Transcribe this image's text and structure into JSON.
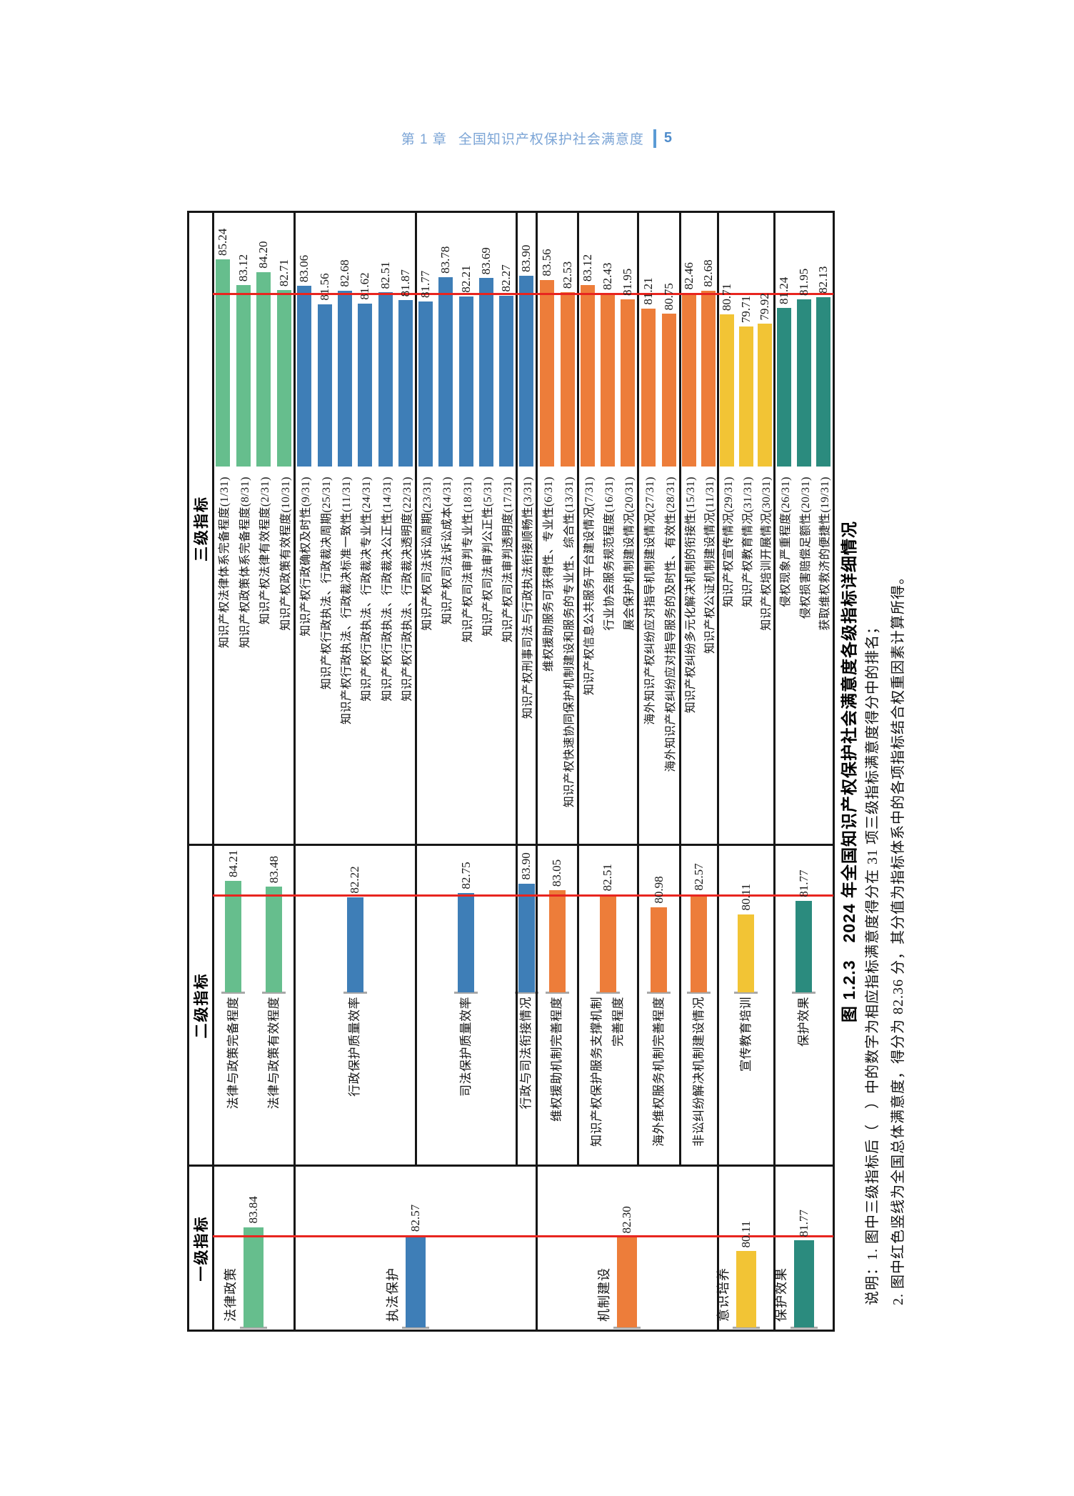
{
  "page_header": {
    "chapter": "第 1 章",
    "title": "全国知识产权保护社会满意度",
    "page_number": "5"
  },
  "figure": {
    "column_headers": [
      "一级指标",
      "二级指标",
      "三级指标"
    ],
    "caption": "图 1.2.3　2024 年全国知识产权保护社会满意度各级指标详细情况",
    "notes": [
      "说明：1. 图中三级指标后（　）中的数字为相应指标满意度得分在 31 项三级指标满意度得分中的排名；",
      "2. 图中红色竖线为全国总体满意度，得分为 82.36 分，其分值为指标体系中的各项指标结合权重因素计算所得。"
    ]
  },
  "chart_data": {
    "type": "bar",
    "orientation": "horizontal bars, whole figure rotated 90° counterclockwise on the page",
    "national_average": 82.36,
    "average_line_color": "#e8251f",
    "legend_position": "none",
    "grid": "table frame with black separators per indicator group",
    "groups": [
      {
        "color": "#66be8d",
        "level1": {
          "label": "法律政策",
          "value": 83.84
        },
        "rows": [
          {
            "level2": [
              {
                "label": "法律与政策完备程度",
                "value": 84.21
              },
              {
                "label": "法律与政策有效程度",
                "value": 83.48
              }
            ],
            "level3": [
              {
                "label": "知识产权法律体系完备程度(1/31)",
                "value": 85.24
              },
              {
                "label": "知识产权政策体系完备程度(8/31)",
                "value": 83.12
              },
              {
                "label": "知识产权法律有效程度(2/31)",
                "value": 84.2
              },
              {
                "label": "知识产权政策有效程度(10/31)",
                "value": 82.71
              }
            ]
          }
        ]
      },
      {
        "color": "#3e7eb7",
        "level1": {
          "label": "执法保护",
          "value": 82.57
        },
        "rows": [
          {
            "level2": [
              {
                "label": "行政保护质量效率",
                "value": 82.22
              }
            ],
            "level3": [
              {
                "label": "知识产权行政确权及时性(9/31)",
                "value": 83.06
              },
              {
                "label": "知识产权行政执法、行政裁决周期(25/31)",
                "value": 81.56
              },
              {
                "label": "知识产权行政执法、行政裁决标准一致性(11/31)",
                "value": 82.68
              },
              {
                "label": "知识产权行政执法、行政裁决专业性(24/31)",
                "value": 81.62
              },
              {
                "label": "知识产权行政执法、行政裁决公正性(14/31)",
                "value": 82.51
              },
              {
                "label": "知识产权行政执法、行政裁决透明度(22/31)",
                "value": 81.87
              }
            ]
          },
          {
            "level2": [
              {
                "label": "司法保护质量效率",
                "value": 82.75
              }
            ],
            "level3": [
              {
                "label": "知识产权司法诉讼周期(23/31)",
                "value": 81.77
              },
              {
                "label": "知识产权司法诉讼成本(4/31)",
                "value": 83.78
              },
              {
                "label": "知识产权司法审判专业性(18/31)",
                "value": 82.21
              },
              {
                "label": "知识产权司法审判公正性(5/31)",
                "value": 83.69
              },
              {
                "label": "知识产权司法审判透明度(17/31)",
                "value": 82.27
              }
            ]
          },
          {
            "level2": [
              {
                "label": "行政与司法衔接情况",
                "value": 83.9
              }
            ],
            "level3": [
              {
                "label": "知识产权刑事司法与行政执法衔接顺畅性(3/31)",
                "value": 83.9
              }
            ]
          }
        ]
      },
      {
        "color": "#ed7d3a",
        "level1": {
          "label": "机制建设",
          "value": 82.3
        },
        "rows": [
          {
            "level2": [
              {
                "label": "维权援助机制完善程度",
                "value": 83.05
              }
            ],
            "level3": [
              {
                "label": "维权援助服务可获得性、专业性(6/31)",
                "value": 83.56
              },
              {
                "label": "知识产权快速协同保护机制建设和服务的专业性、综合性(13/31)",
                "value": 82.53
              }
            ]
          },
          {
            "level2": [
              {
                "label": "知识产权保护服务支撑机制\n完善程度",
                "value": 82.51
              }
            ],
            "level3": [
              {
                "label": "知识产权信息公共服务平台建设情况(7/31)",
                "value": 83.12
              },
              {
                "label": "行业协会服务规范程度(16/31)",
                "value": 82.43
              },
              {
                "label": "展会保护机制建设情况(20/31)",
                "value": 81.95
              }
            ]
          },
          {
            "level2": [
              {
                "label": "海外维权服务机制完善程度",
                "value": 80.98
              }
            ],
            "level3": [
              {
                "label": "海外知识产权纠纷应对指导机制建设情况(27/31)",
                "value": 81.21
              },
              {
                "label": "海外知识产权纠纷应对指导服务的及时性、有效性(28/31)",
                "value": 80.75
              }
            ]
          },
          {
            "level2": [
              {
                "label": "非讼纠纷解决机制建设情况",
                "value": 82.57
              }
            ],
            "level3": [
              {
                "label": "知识产权纠纷多元化解决机制的衔接性(15/31)",
                "value": 82.46
              },
              {
                "label": "知识产权公证机制建设情况(11/31)",
                "value": 82.68
              }
            ]
          }
        ]
      },
      {
        "color": "#f2c435",
        "level1": {
          "label": "意识培养",
          "value": 80.11
        },
        "rows": [
          {
            "level2": [
              {
                "label": "宣传教育培训",
                "value": 80.11
              }
            ],
            "level3": [
              {
                "label": "知识产权宣传情况(29/31)",
                "value": 80.71
              },
              {
                "label": "知识产权教育情况(31/31)",
                "value": 79.71
              },
              {
                "label": "知识产权培训开展情况(30/31)",
                "value": 79.92
              }
            ]
          }
        ]
      },
      {
        "color": "#2b8b7e",
        "level1": {
          "label": "保护效果",
          "value": 81.77
        },
        "rows": [
          {
            "level2": [
              {
                "label": "保护效果",
                "value": 81.77
              }
            ],
            "level3": [
              {
                "label": "侵权现象严重程度(26/31)",
                "value": 81.24
              },
              {
                "label": "侵权损害赔偿足额性(20/31)",
                "value": 81.95
              },
              {
                "label": "获取维权救济的便捷性(19/31)",
                "value": 82.13
              }
            ]
          }
        ]
      }
    ]
  }
}
